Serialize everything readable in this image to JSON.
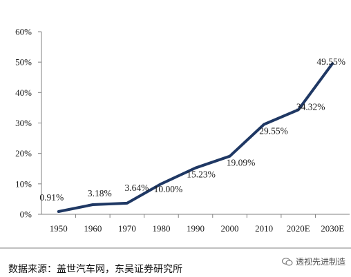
{
  "chart_data": {
    "type": "line",
    "categories": [
      "1950",
      "1960",
      "1970",
      "1980",
      "1990",
      "2000",
      "2010",
      "2020E",
      "2030E"
    ],
    "series": [
      {
        "values": [
          0.91,
          3.18,
          3.64,
          10.0,
          15.23,
          19.09,
          29.55,
          34.32,
          49.55
        ],
        "color": "#1f3864"
      }
    ],
    "data_labels": [
      "0.91%",
      "3.18%",
      "3.64%",
      "10.00%",
      "15.23%",
      "19.09%",
      "29.55%",
      "34.32%",
      "49.55%"
    ],
    "y_ticks": [
      "0%",
      "10%",
      "20%",
      "30%",
      "40%",
      "50%",
      "60%"
    ],
    "ylim": [
      0,
      60
    ],
    "grid": false,
    "legend": "none"
  },
  "source_text": "数据来源：盖世汽车网，东吴证券研究所",
  "watermark_text": "透视先进制造"
}
